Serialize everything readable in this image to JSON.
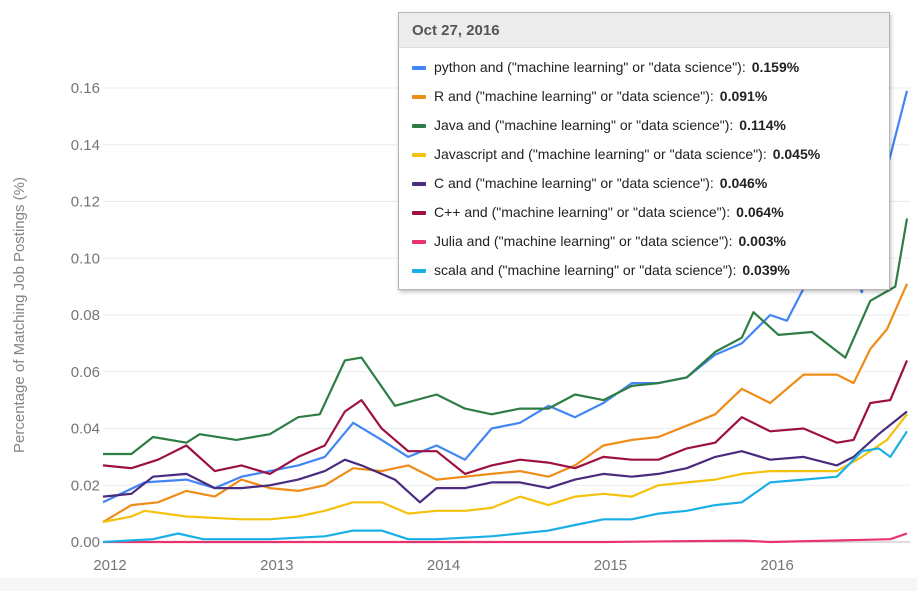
{
  "chart_data": {
    "type": "line",
    "title": "",
    "xlabel": "",
    "ylabel": "Percentage of Matching Job Postings (%)",
    "xlim": [
      2012,
      2016.82
    ],
    "ylim": [
      0,
      0.16
    ],
    "x_ticks": [
      "2012",
      "2013",
      "2014",
      "2015",
      "2016"
    ],
    "y_ticks": [
      "0.00",
      "0.02",
      "0.04",
      "0.06",
      "0.08",
      "0.10",
      "0.12",
      "0.14",
      "0.16"
    ],
    "grid": true,
    "tooltip": {
      "date": "Oct 27, 2016",
      "entries": [
        {
          "label": "python and (\"machine learning\" or \"data science\"):",
          "value": "0.159%"
        },
        {
          "label": "R and (\"machine learning\" or \"data science\"):",
          "value": "0.091%"
        },
        {
          "label": "Java and (\"machine learning\" or \"data science\"):",
          "value": "0.114%"
        },
        {
          "label": "Javascript and (\"machine learning\" or \"data science\"):",
          "value": "0.045%"
        },
        {
          "label": "C and (\"machine learning\" or \"data science\"):",
          "value": "0.046%"
        },
        {
          "label": "C++ and (\"machine learning\" or \"data science\"):",
          "value": "0.064%"
        },
        {
          "label": "Julia and (\"machine learning\" or \"data science\"):",
          "value": "0.003%"
        },
        {
          "label": "scala and (\"machine learning\" or \"data science\"):",
          "value": "0.039%"
        }
      ]
    },
    "series": [
      {
        "name": "python",
        "color": "#4285f4",
        "points": [
          [
            2012,
            0.014
          ],
          [
            2012.25,
            0.021
          ],
          [
            2012.5,
            0.022
          ],
          [
            2012.67,
            0.019
          ],
          [
            2012.83,
            0.023
          ],
          [
            2013,
            0.025
          ],
          [
            2013.17,
            0.027
          ],
          [
            2013.33,
            0.03
          ],
          [
            2013.5,
            0.042
          ],
          [
            2013.67,
            0.036
          ],
          [
            2013.83,
            0.03
          ],
          [
            2014,
            0.034
          ],
          [
            2014.17,
            0.029
          ],
          [
            2014.33,
            0.04
          ],
          [
            2014.5,
            0.042
          ],
          [
            2014.67,
            0.048
          ],
          [
            2014.83,
            0.044
          ],
          [
            2015,
            0.049
          ],
          [
            2015.17,
            0.056
          ],
          [
            2015.33,
            0.056
          ],
          [
            2015.5,
            0.058
          ],
          [
            2015.67,
            0.066
          ],
          [
            2015.83,
            0.07
          ],
          [
            2016,
            0.08
          ],
          [
            2016.1,
            0.078
          ],
          [
            2016.25,
            0.095
          ],
          [
            2016.4,
            0.105
          ],
          [
            2016.55,
            0.088
          ],
          [
            2016.65,
            0.12
          ],
          [
            2016.82,
            0.159
          ]
        ]
      },
      {
        "name": "R",
        "color": "#ef8c17",
        "points": [
          [
            2012,
            0.007
          ],
          [
            2012.17,
            0.013
          ],
          [
            2012.33,
            0.014
          ],
          [
            2012.5,
            0.018
          ],
          [
            2012.67,
            0.016
          ],
          [
            2012.83,
            0.022
          ],
          [
            2013,
            0.019
          ],
          [
            2013.17,
            0.018
          ],
          [
            2013.33,
            0.02
          ],
          [
            2013.5,
            0.026
          ],
          [
            2013.67,
            0.025
          ],
          [
            2013.83,
            0.027
          ],
          [
            2014,
            0.022
          ],
          [
            2014.17,
            0.023
          ],
          [
            2014.33,
            0.024
          ],
          [
            2014.5,
            0.025
          ],
          [
            2014.67,
            0.023
          ],
          [
            2014.83,
            0.027
          ],
          [
            2015,
            0.034
          ],
          [
            2015.17,
            0.036
          ],
          [
            2015.33,
            0.037
          ],
          [
            2015.5,
            0.041
          ],
          [
            2015.67,
            0.045
          ],
          [
            2015.83,
            0.054
          ],
          [
            2016,
            0.049
          ],
          [
            2016.2,
            0.059
          ],
          [
            2016.4,
            0.059
          ],
          [
            2016.5,
            0.056
          ],
          [
            2016.6,
            0.068
          ],
          [
            2016.7,
            0.075
          ],
          [
            2016.82,
            0.091
          ]
        ]
      },
      {
        "name": "Java",
        "color": "#2e7d45",
        "points": [
          [
            2012,
            0.031
          ],
          [
            2012.17,
            0.031
          ],
          [
            2012.3,
            0.037
          ],
          [
            2012.5,
            0.035
          ],
          [
            2012.58,
            0.038
          ],
          [
            2012.8,
            0.036
          ],
          [
            2013,
            0.038
          ],
          [
            2013.17,
            0.044
          ],
          [
            2013.3,
            0.045
          ],
          [
            2013.45,
            0.064
          ],
          [
            2013.55,
            0.065
          ],
          [
            2013.75,
            0.048
          ],
          [
            2014,
            0.052
          ],
          [
            2014.17,
            0.047
          ],
          [
            2014.33,
            0.045
          ],
          [
            2014.5,
            0.047
          ],
          [
            2014.67,
            0.047
          ],
          [
            2014.83,
            0.052
          ],
          [
            2015,
            0.05
          ],
          [
            2015.17,
            0.055
          ],
          [
            2015.33,
            0.056
          ],
          [
            2015.5,
            0.058
          ],
          [
            2015.67,
            0.067
          ],
          [
            2015.83,
            0.072
          ],
          [
            2015.9,
            0.081
          ],
          [
            2016.05,
            0.073
          ],
          [
            2016.25,
            0.074
          ],
          [
            2016.45,
            0.065
          ],
          [
            2016.6,
            0.085
          ],
          [
            2016.75,
            0.09
          ],
          [
            2016.82,
            0.114
          ]
        ]
      },
      {
        "name": "Javascript",
        "color": "#f4c20d",
        "points": [
          [
            2012,
            0.007
          ],
          [
            2012.17,
            0.009
          ],
          [
            2012.25,
            0.011
          ],
          [
            2012.5,
            0.009
          ],
          [
            2012.83,
            0.008
          ],
          [
            2013,
            0.008
          ],
          [
            2013.17,
            0.009
          ],
          [
            2013.33,
            0.011
          ],
          [
            2013.5,
            0.014
          ],
          [
            2013.67,
            0.014
          ],
          [
            2013.83,
            0.01
          ],
          [
            2014,
            0.011
          ],
          [
            2014.17,
            0.011
          ],
          [
            2014.33,
            0.012
          ],
          [
            2014.5,
            0.016
          ],
          [
            2014.67,
            0.013
          ],
          [
            2014.83,
            0.016
          ],
          [
            2015,
            0.017
          ],
          [
            2015.17,
            0.016
          ],
          [
            2015.33,
            0.02
          ],
          [
            2015.5,
            0.021
          ],
          [
            2015.67,
            0.022
          ],
          [
            2015.83,
            0.024
          ],
          [
            2016,
            0.025
          ],
          [
            2016.2,
            0.025
          ],
          [
            2016.4,
            0.025
          ],
          [
            2016.55,
            0.03
          ],
          [
            2016.7,
            0.036
          ],
          [
            2016.82,
            0.045
          ]
        ]
      },
      {
        "name": "C",
        "color": "#4a2b7f",
        "points": [
          [
            2012,
            0.016
          ],
          [
            2012.17,
            0.017
          ],
          [
            2012.3,
            0.023
          ],
          [
            2012.5,
            0.024
          ],
          [
            2012.67,
            0.019
          ],
          [
            2012.83,
            0.019
          ],
          [
            2013,
            0.02
          ],
          [
            2013.17,
            0.022
          ],
          [
            2013.33,
            0.025
          ],
          [
            2013.45,
            0.029
          ],
          [
            2013.55,
            0.027
          ],
          [
            2013.75,
            0.022
          ],
          [
            2013.9,
            0.014
          ],
          [
            2014,
            0.019
          ],
          [
            2014.17,
            0.019
          ],
          [
            2014.33,
            0.021
          ],
          [
            2014.5,
            0.021
          ],
          [
            2014.67,
            0.019
          ],
          [
            2014.83,
            0.022
          ],
          [
            2015,
            0.024
          ],
          [
            2015.17,
            0.023
          ],
          [
            2015.33,
            0.024
          ],
          [
            2015.5,
            0.026
          ],
          [
            2015.67,
            0.03
          ],
          [
            2015.83,
            0.032
          ],
          [
            2016,
            0.029
          ],
          [
            2016.2,
            0.03
          ],
          [
            2016.4,
            0.027
          ],
          [
            2016.5,
            0.03
          ],
          [
            2016.65,
            0.038
          ],
          [
            2016.82,
            0.046
          ]
        ]
      },
      {
        "name": "C++",
        "color": "#9c1042",
        "points": [
          [
            2012,
            0.027
          ],
          [
            2012.17,
            0.026
          ],
          [
            2012.33,
            0.029
          ],
          [
            2012.5,
            0.034
          ],
          [
            2012.67,
            0.025
          ],
          [
            2012.83,
            0.027
          ],
          [
            2013,
            0.024
          ],
          [
            2013.17,
            0.03
          ],
          [
            2013.33,
            0.034
          ],
          [
            2013.45,
            0.046
          ],
          [
            2013.55,
            0.05
          ],
          [
            2013.67,
            0.04
          ],
          [
            2013.83,
            0.032
          ],
          [
            2014,
            0.032
          ],
          [
            2014.17,
            0.024
          ],
          [
            2014.33,
            0.027
          ],
          [
            2014.5,
            0.029
          ],
          [
            2014.67,
            0.028
          ],
          [
            2014.83,
            0.026
          ],
          [
            2015,
            0.03
          ],
          [
            2015.17,
            0.029
          ],
          [
            2015.33,
            0.029
          ],
          [
            2015.5,
            0.033
          ],
          [
            2015.67,
            0.035
          ],
          [
            2015.83,
            0.044
          ],
          [
            2016,
            0.039
          ],
          [
            2016.2,
            0.04
          ],
          [
            2016.4,
            0.035
          ],
          [
            2016.5,
            0.036
          ],
          [
            2016.6,
            0.049
          ],
          [
            2016.72,
            0.05
          ],
          [
            2016.82,
            0.064
          ]
        ]
      },
      {
        "name": "Julia",
        "color": "#e8336e",
        "points": [
          [
            2012,
            0
          ],
          [
            2013,
            0
          ],
          [
            2014,
            0
          ],
          [
            2015,
            0
          ],
          [
            2015.83,
            0.0005
          ],
          [
            2016,
            0
          ],
          [
            2016.6,
            0.0008
          ],
          [
            2016.72,
            0.001
          ],
          [
            2016.82,
            0.003
          ]
        ]
      },
      {
        "name": "scala",
        "color": "#1aafe6",
        "points": [
          [
            2012,
            0
          ],
          [
            2012.3,
            0.001
          ],
          [
            2012.45,
            0.003
          ],
          [
            2012.6,
            0.001
          ],
          [
            2012.83,
            0.001
          ],
          [
            2013,
            0.001
          ],
          [
            2013.33,
            0.002
          ],
          [
            2013.5,
            0.004
          ],
          [
            2013.67,
            0.004
          ],
          [
            2013.83,
            0.001
          ],
          [
            2014,
            0.001
          ],
          [
            2014.33,
            0.002
          ],
          [
            2014.67,
            0.004
          ],
          [
            2014.83,
            0.006
          ],
          [
            2015,
            0.008
          ],
          [
            2015.17,
            0.008
          ],
          [
            2015.33,
            0.01
          ],
          [
            2015.5,
            0.011
          ],
          [
            2015.67,
            0.013
          ],
          [
            2015.83,
            0.014
          ],
          [
            2016,
            0.021
          ],
          [
            2016.2,
            0.022
          ],
          [
            2016.4,
            0.023
          ],
          [
            2016.55,
            0.032
          ],
          [
            2016.65,
            0.033
          ],
          [
            2016.72,
            0.03
          ],
          [
            2016.82,
            0.039
          ]
        ]
      }
    ]
  }
}
